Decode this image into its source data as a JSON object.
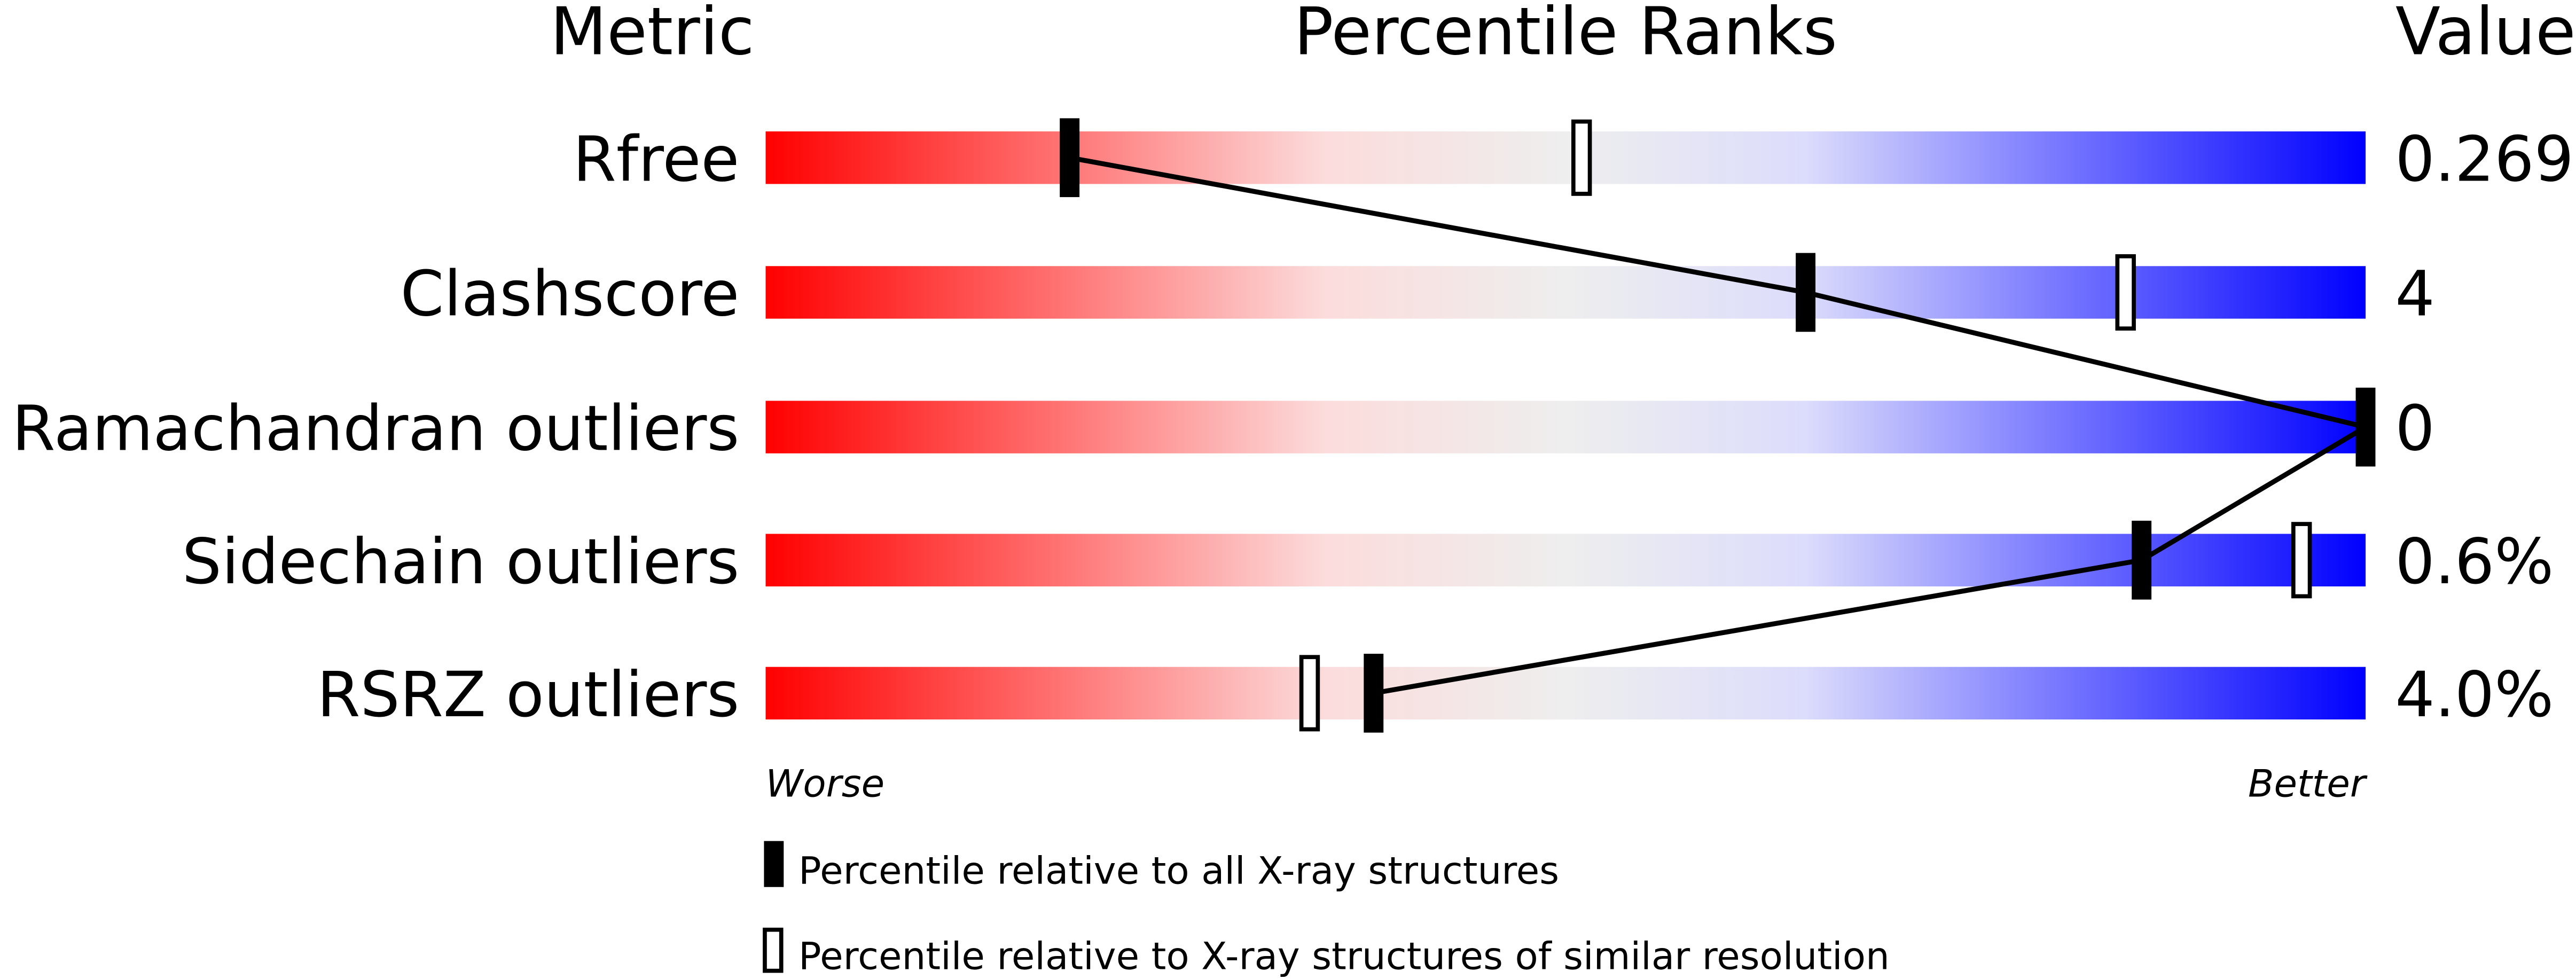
{
  "chart_data": {
    "type": "percentile-slider",
    "headers": {
      "metric": "Metric",
      "ranks": "Percentile Ranks",
      "value": "Value"
    },
    "xlim": [
      0,
      100
    ],
    "axis_labels": {
      "left": "Worse",
      "right": "Better"
    },
    "metrics": [
      {
        "name": "Rfree",
        "value": "0.269",
        "percentile_all": 19,
        "percentile_similar": 51
      },
      {
        "name": "Clashscore",
        "value": "4",
        "percentile_all": 65,
        "percentile_similar": 85
      },
      {
        "name": "Ramachandran outliers",
        "value": "0",
        "percentile_all": 100,
        "percentile_similar": 100
      },
      {
        "name": "Sidechain outliers",
        "value": "0.6%",
        "percentile_all": 86,
        "percentile_similar": 96
      },
      {
        "name": "RSRZ outliers",
        "value": "4.0%",
        "percentile_all": 38,
        "percentile_similar": 34
      }
    ],
    "legend": [
      {
        "marker": "filled",
        "label": "Percentile relative to all X-ray structures"
      },
      {
        "marker": "open",
        "label": "Percentile relative to X-ray structures of similar resolution"
      }
    ],
    "colors": {
      "worse": "#ff0000",
      "middle": "#eeeeee",
      "better": "#0000ff",
      "marker": "#000000"
    }
  }
}
